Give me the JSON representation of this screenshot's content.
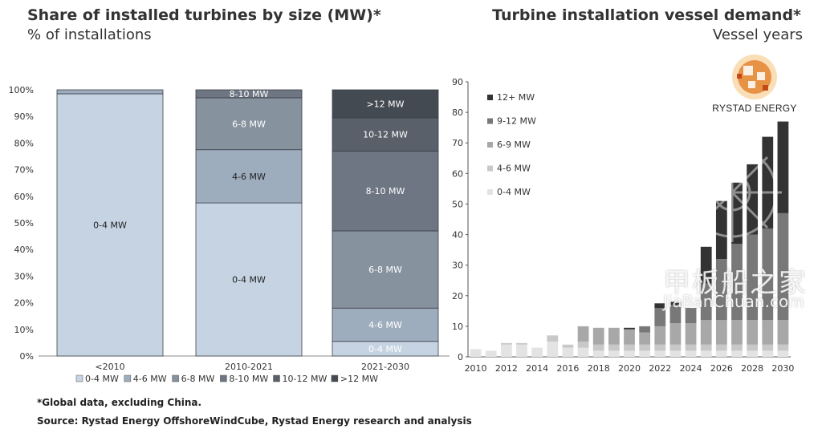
{
  "left_chart": {
    "title": "Share of installed turbines by size (MW)*",
    "subtitle": "% of installations"
  },
  "right_chart": {
    "title": "Turbine installation vessel demand*",
    "subtitle": "Vessel years"
  },
  "footnote": "*Global data, excluding China.",
  "source": "Source: Rystad Energy OffshoreWindCube, Rystad Energy research and analysis",
  "logo": {
    "text": "RYSTAD ENERGY"
  },
  "watermark": {
    "line1": "甲板船之家",
    "line2": "JiaBanChuan.com"
  },
  "colors": {
    "seg_0_4": "#c6d3e3",
    "seg_4_6": "#9eadbe",
    "seg_6_8": "#87929f",
    "seg_8_10": "#6e7683",
    "seg_10_12": "#596069",
    "seg_12": "#444a52",
    "v_0_4": "#e3e3e3",
    "v_4_6": "#c8c8c8",
    "v_6_9": "#a8a8a8",
    "v_9_12": "#787878",
    "v_12": "#333333"
  },
  "chart_data": [
    {
      "type": "bar",
      "stacked": true,
      "title": "Share of installed turbines by size (MW)*",
      "subtitle": "% of installations",
      "categories": [
        "<2010",
        "2010-2021",
        "2021-2030"
      ],
      "ylim": [
        0,
        100
      ],
      "yticks": [
        "0%",
        "10%",
        "20%",
        "30%",
        "40%",
        "50%",
        "60%",
        "70%",
        "80%",
        "90%",
        "100%"
      ],
      "legend_position": "bottom",
      "series": [
        {
          "name": "0-4 MW",
          "values": [
            98.5,
            57.5,
            5.5
          ],
          "labels": [
            "0-4 MW",
            "0-4 MW",
            "0-4 MW"
          ]
        },
        {
          "name": "4-6 MW",
          "values": [
            1.5,
            20,
            12.5
          ],
          "labels": [
            "",
            "4-6 MW",
            "4-6 MW"
          ]
        },
        {
          "name": "6-8 MW",
          "values": [
            0,
            19.5,
            29
          ],
          "labels": [
            "",
            "6-8 MW",
            "6-8 MW"
          ]
        },
        {
          "name": "8-10 MW",
          "values": [
            0,
            3,
            30
          ],
          "labels": [
            "",
            "8-10 MW",
            "8-10 MW"
          ]
        },
        {
          "name": "10-12 MW",
          "values": [
            0,
            0,
            12.5
          ],
          "labels": [
            "",
            "",
            "10-12 MW"
          ]
        },
        {
          "name": ">12 MW",
          "values": [
            0,
            0,
            10.5
          ],
          "labels": [
            "",
            "",
            ">12 MW"
          ]
        }
      ]
    },
    {
      "type": "bar",
      "stacked": true,
      "title": "Turbine installation vessel demand*",
      "subtitle": "Vessel years",
      "x": [
        2010,
        2011,
        2012,
        2013,
        2014,
        2015,
        2016,
        2017,
        2018,
        2019,
        2020,
        2021,
        2022,
        2023,
        2024,
        2025,
        2026,
        2027,
        2028,
        2029,
        2030
      ],
      "xticks": [
        "2010",
        "2012",
        "2014",
        "2016",
        "2018",
        "2020",
        "2022",
        "2024",
        "2026",
        "2028",
        "2030"
      ],
      "ylim": [
        0,
        90
      ],
      "yticks": [
        "0",
        "10",
        "20",
        "30",
        "40",
        "50",
        "60",
        "70",
        "80",
        "90"
      ],
      "legend_position": "top-left",
      "series": [
        {
          "name": "0-4 MW",
          "values": [
            2.5,
            2,
            4,
            4,
            3,
            5,
            3,
            3,
            2,
            2,
            2,
            2,
            2,
            2,
            2,
            2,
            2,
            2,
            2,
            2,
            2
          ]
        },
        {
          "name": "4-6 MW",
          "values": [
            0,
            0,
            0.5,
            0.5,
            0,
            2,
            1,
            2,
            2,
            2,
            2,
            2,
            2,
            2,
            2,
            2,
            2,
            2,
            2,
            2,
            2
          ]
        },
        {
          "name": "6-9 MW",
          "values": [
            0,
            0,
            0,
            0,
            0,
            0,
            0,
            5,
            5.5,
            5.5,
            5,
            4,
            6,
            7,
            7,
            8,
            8,
            8,
            8,
            8,
            8
          ]
        },
        {
          "name": "9-12 MW",
          "values": [
            0,
            0,
            0,
            0,
            0,
            0,
            0,
            0,
            0,
            0,
            0,
            2,
            6,
            6,
            5,
            12,
            20,
            25,
            28,
            30,
            35
          ]
        },
        {
          "name": "12+ MW",
          "values": [
            0,
            0,
            0,
            0,
            0,
            0,
            0,
            0,
            0,
            0,
            0.5,
            0,
            1.5,
            1,
            0,
            12,
            19,
            20,
            23,
            30,
            30
          ]
        }
      ]
    }
  ]
}
